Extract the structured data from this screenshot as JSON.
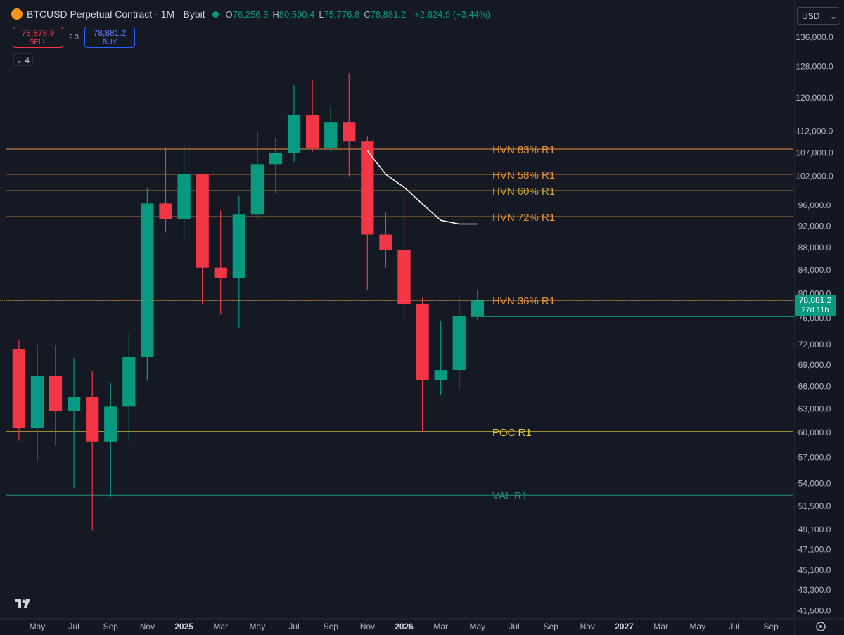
{
  "header": {
    "symbol": "BTCUSD Perpetual Contract · 1M · Bybit",
    "ohlc": [
      {
        "key": "O",
        "value": "76,256.3"
      },
      {
        "key": "H",
        "value": "80,590.4"
      },
      {
        "key": "L",
        "value": "75,776.8"
      },
      {
        "key": "C",
        "value": "78,881.2"
      }
    ],
    "change": "+2,624.9 (+3.44%)",
    "sell_price": "78,878.9",
    "sell_label": "SELL",
    "spread": "2.3",
    "buy_price": "78,881.2",
    "buy_label": "BUY",
    "indicators": "4",
    "currency": "USD"
  },
  "chart_data": {
    "type": "candlestick",
    "log_scale": true,
    "grid": false,
    "up_color": "#089981",
    "down_color": "#f23645",
    "x": [
      -1,
      0,
      1,
      2,
      3,
      4,
      5,
      6,
      7,
      8,
      9,
      10,
      11,
      12,
      13,
      14,
      15,
      16,
      17,
      18,
      19,
      20,
      21,
      22,
      23,
      24
    ],
    "open": [
      71300,
      60600,
      67500,
      62700,
      64600,
      58900,
      63300,
      70200,
      96400,
      93400,
      102400,
      84400,
      82600,
      94200,
      104600,
      107100,
      115700,
      108200,
      114000,
      109600,
      90400,
      87600,
      78300,
      66900,
      68300,
      76256.3
    ],
    "high": [
      72700,
      72000,
      71900,
      70000,
      68200,
      66500,
      73600,
      99600,
      108300,
      109400,
      102500,
      95000,
      97900,
      111900,
      110500,
      123200,
      124500,
      117900,
      126200,
      110700,
      94600,
      97900,
      79300,
      75600,
      79300,
      80590.4
    ],
    "low": [
      59000,
      56500,
      58400,
      53500,
      49000,
      52500,
      58900,
      66800,
      90800,
      89200,
      78200,
      76600,
      74500,
      93400,
      98300,
      105100,
      107300,
      107200,
      102000,
      80600,
      84400,
      75600,
      60000,
      64900,
      65500,
      75776.8
    ],
    "close": [
      60600,
      67500,
      62700,
      64600,
      58900,
      63300,
      70200,
      96400,
      93400,
      102400,
      84400,
      82600,
      94200,
      104600,
      107100,
      115700,
      108200,
      114000,
      109600,
      90400,
      87600,
      78300,
      66900,
      68300,
      76300,
      78881.2
    ],
    "ma": {
      "x": [
        18,
        19,
        20,
        21,
        22,
        23,
        24
      ],
      "values": [
        107500,
        102400,
        99700,
        96300,
        93100,
        92400,
        92400
      ],
      "color": "#ffffff"
    },
    "levels": [
      {
        "label": "HVN 83% R1",
        "value": 107900,
        "color": "#e8923a"
      },
      {
        "label": "HVN 58% R1",
        "value": 102400,
        "color": "#e8923a"
      },
      {
        "label": "HVN 60% R1",
        "value": 99000,
        "color": "#cfa63c"
      },
      {
        "label": "HVN 72% R1",
        "value": 93800,
        "color": "#e8923a"
      },
      {
        "label": "HVN 36% R1",
        "value": 78900,
        "color": "#e8923a"
      },
      {
        "label": "POC R1",
        "value": 60100,
        "color": "#f0d040"
      },
      {
        "label": "VAL R1",
        "value": 52700,
        "color": "#1f8f7a"
      }
    ],
    "price_tag": {
      "value": 78881.2,
      "label": "78,881.2",
      "countdown": "27d 11h",
      "color": "#089981"
    },
    "ylim": [
      40800,
      146900
    ],
    "yticks": [
      {
        "value": 136000,
        "label": "136,000.0"
      },
      {
        "value": 128000,
        "label": "128,000.0"
      },
      {
        "value": 120000,
        "label": "120,000.0"
      },
      {
        "value": 112000,
        "label": "112,000.0"
      },
      {
        "value": 107000,
        "label": "107,000.0"
      },
      {
        "value": 102000,
        "label": "102,000.0"
      },
      {
        "value": 96000,
        "label": "96,000.0"
      },
      {
        "value": 92000,
        "label": "92,000.0"
      },
      {
        "value": 88000,
        "label": "88,000.0"
      },
      {
        "value": 84000,
        "label": "84,000.0"
      },
      {
        "value": 80000,
        "label": "80,000.0"
      },
      {
        "value": 76000,
        "label": "76,000.0"
      },
      {
        "value": 72000,
        "label": "72,000.0"
      },
      {
        "value": 69000,
        "label": "69,000.0"
      },
      {
        "value": 66000,
        "label": "66,000.0"
      },
      {
        "value": 63000,
        "label": "63,000.0"
      },
      {
        "value": 60000,
        "label": "60,000.0"
      },
      {
        "value": 57000,
        "label": "57,000.0"
      },
      {
        "value": 54000,
        "label": "54,000.0"
      },
      {
        "value": 51500,
        "label": "51,500.0"
      },
      {
        "value": 49100,
        "label": "49,100.0"
      },
      {
        "value": 47100,
        "label": "47,100.0"
      },
      {
        "value": 45100,
        "label": "45,100.0"
      },
      {
        "value": 43300,
        "label": "43,300.0"
      },
      {
        "value": 41500,
        "label": "41,500.0"
      }
    ],
    "xlim": [
      -2.03,
      41.3
    ],
    "xticks": [
      {
        "value": 0,
        "label": "May"
      },
      {
        "value": 2,
        "label": "Jul"
      },
      {
        "value": 4,
        "label": "Sep"
      },
      {
        "value": 6,
        "label": "Nov"
      },
      {
        "value": 8,
        "label": "2025"
      },
      {
        "value": 10,
        "label": "Mar"
      },
      {
        "value": 12,
        "label": "May"
      },
      {
        "value": 14,
        "label": "Jul"
      },
      {
        "value": 16,
        "label": "Sep"
      },
      {
        "value": 18,
        "label": "Nov"
      },
      {
        "value": 20,
        "label": "2026"
      },
      {
        "value": 22,
        "label": "Mar"
      },
      {
        "value": 24,
        "label": "May"
      },
      {
        "value": 26,
        "label": "Jul"
      },
      {
        "value": 28,
        "label": "Sep"
      },
      {
        "value": 30,
        "label": "Nov"
      },
      {
        "value": 32,
        "label": "2027"
      },
      {
        "value": 34,
        "label": "Mar"
      },
      {
        "value": 36,
        "label": "May"
      },
      {
        "value": 38,
        "label": "Jul"
      },
      {
        "value": 40,
        "label": "Sep"
      }
    ]
  }
}
